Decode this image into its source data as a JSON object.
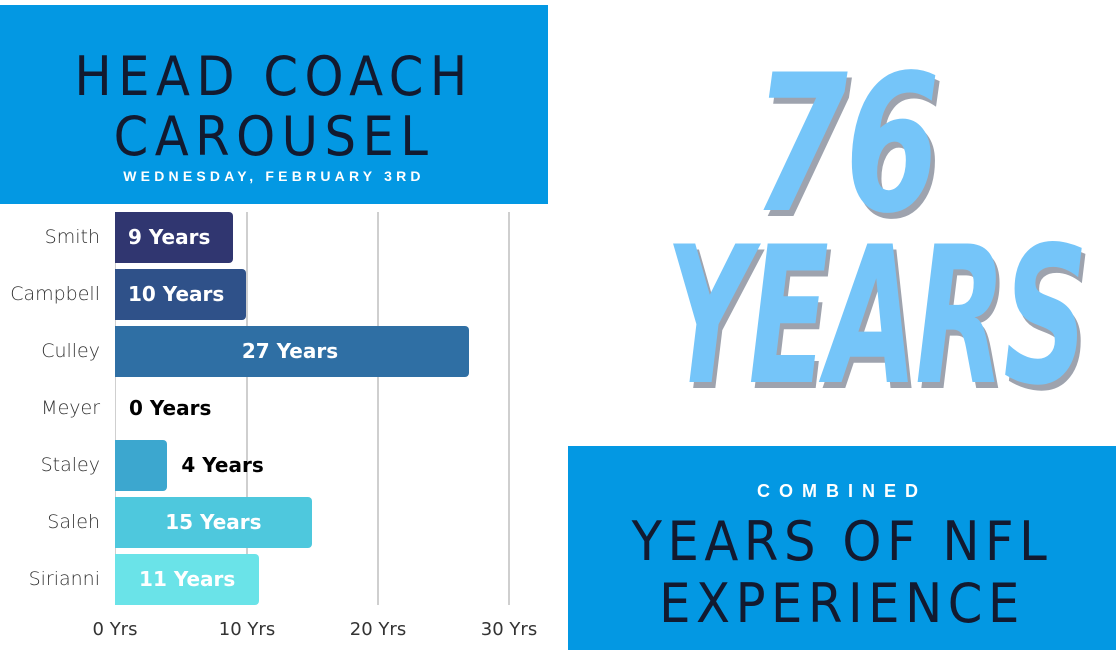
{
  "header": {
    "title_line1": "HEAD COACH",
    "title_line2": "CAROUSEL",
    "date": "WEDNESDAY, FEBRUARY 3RD"
  },
  "colors": {
    "header_bg": "#0398E3",
    "title_text": "#121A30",
    "big_number": "#75C5F9",
    "big_shadow": "#9EA3AE"
  },
  "chart_data": {
    "type": "bar",
    "orientation": "horizontal",
    "title": "",
    "categories": [
      "Smith",
      "Campbell",
      "Culley",
      "Meyer",
      "Staley",
      "Saleh",
      "Sirianni"
    ],
    "values": [
      9,
      10,
      27,
      0,
      4,
      15,
      11
    ],
    "data_labels": [
      "9 Years",
      "10 Years",
      "27 Years",
      "0 Years",
      "4 Years",
      "15 Years",
      "11 Years"
    ],
    "bar_colors": [
      "#303670",
      "#2F5189",
      "#2F6FA4",
      "#3A8FC0",
      "#3CA7CF",
      "#4EC8DD",
      "#6AE3E8"
    ],
    "xticks": [
      "0 Yrs",
      "10 Yrs",
      "20 Yrs",
      "30 Yrs"
    ],
    "xlim": [
      0,
      30
    ],
    "xlabel": "",
    "ylabel": "",
    "grid": true,
    "legend": "none"
  },
  "summary": {
    "total_number": "76",
    "total_unit": "YEARS",
    "combined_label": "COMBINED",
    "caption_line1": "YEARS OF NFL",
    "caption_line2": "EXPERIENCE"
  }
}
